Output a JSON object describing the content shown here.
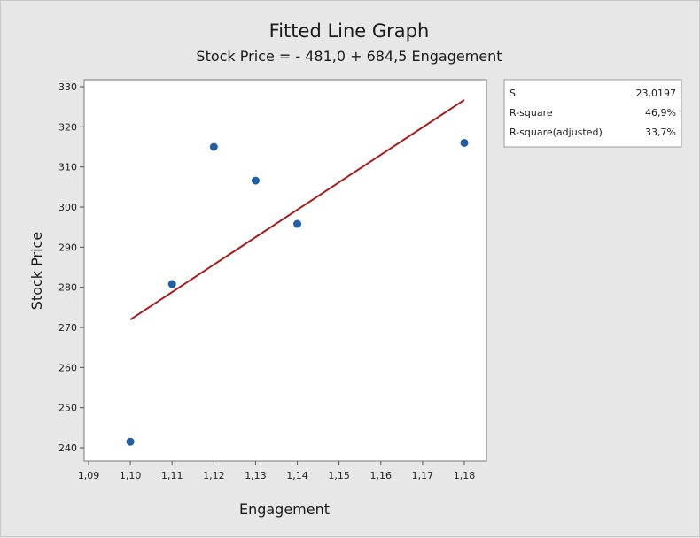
{
  "chart_data": {
    "type": "scatter",
    "title": "Fitted Line Graph",
    "subtitle": "Stock Price = - 481,0 + 684,5 Engagement",
    "xlabel": "Engagement",
    "ylabel": "Stock Price",
    "xlim": [
      1.09,
      1.18
    ],
    "ylim": [
      240,
      330
    ],
    "x_ticks": [
      "1,09",
      "1,10",
      "1,11",
      "1,12",
      "1,13",
      "1,14",
      "1,15",
      "1,16",
      "1,17",
      "1,18"
    ],
    "y_ticks": [
      "240",
      "250",
      "260",
      "270",
      "280",
      "290",
      "300",
      "310",
      "320",
      "330"
    ],
    "points": [
      {
        "x": 1.1,
        "y": 241.5
      },
      {
        "x": 1.11,
        "y": 280.8
      },
      {
        "x": 1.12,
        "y": 315.0
      },
      {
        "x": 1.13,
        "y": 306.6
      },
      {
        "x": 1.14,
        "y": 295.8
      },
      {
        "x": 1.18,
        "y": 316.0
      }
    ],
    "fit": {
      "intercept": -481.0,
      "slope": 684.5,
      "x_start": 1.1,
      "x_end": 1.18
    },
    "point_color": "#1f5fa8",
    "line_color": "#a51c1c",
    "stats": [
      {
        "label": "S",
        "value": "23,0197"
      },
      {
        "label": "R-square",
        "value": "46,9%"
      },
      {
        "label": "R-square(adjusted)",
        "value": "33,7%"
      }
    ]
  }
}
